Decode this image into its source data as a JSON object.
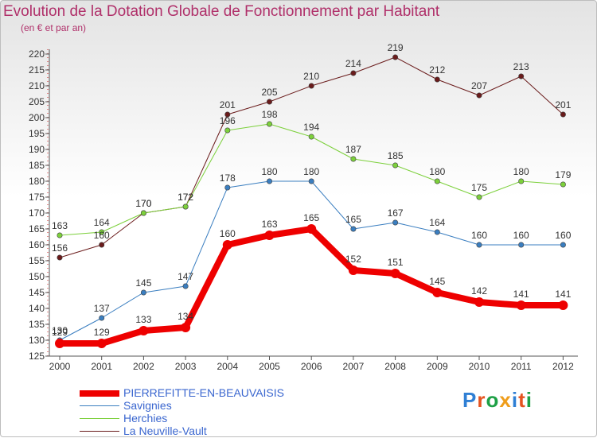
{
  "title": "Evolution de la Dotation Globale de Fonctionnement par Habitant",
  "subtitle": "(en € et par an)",
  "logo": {
    "text": "Proxiti",
    "letter_colors": [
      "#2f7fd4",
      "#e5531f",
      "#1ea046",
      "#ef9d1b",
      "#2f7fd4",
      "#e5531f",
      "#1ea046"
    ]
  },
  "chart_data": {
    "type": "line",
    "title": "Evolution de la Dotation Globale de Fonctionnement par Habitant",
    "subtitle": "(en € et par an)",
    "xlabel": "",
    "ylabel": "",
    "x": [
      "2000",
      "2001",
      "2002",
      "2003",
      "2004",
      "2005",
      "2006",
      "2007",
      "2008",
      "2009",
      "2010",
      "2011",
      "2012"
    ],
    "ylim": [
      125,
      220
    ],
    "yticks": [
      125,
      130,
      135,
      140,
      145,
      150,
      155,
      160,
      165,
      170,
      175,
      180,
      185,
      190,
      195,
      200,
      205,
      210,
      215,
      220
    ],
    "grid": false,
    "legend_position": "bottom-left",
    "series": [
      {
        "name": "PIERREFITTE-EN-BEAUVAISIS",
        "color": "#ee0000",
        "values": [
          129,
          129,
          133,
          134,
          160,
          163,
          165,
          152,
          151,
          145,
          142,
          141,
          141
        ]
      },
      {
        "name": "Savignies",
        "color": "#3a7ec0",
        "values": [
          130,
          137,
          145,
          147,
          178,
          180,
          180,
          165,
          167,
          164,
          160,
          160,
          160
        ]
      },
      {
        "name": "Herchies",
        "color": "#7cd03b",
        "values": [
          163,
          164,
          170,
          172,
          196,
          198,
          194,
          187,
          185,
          180,
          175,
          180,
          179
        ]
      },
      {
        "name": "La Neuville-Vault",
        "color": "#6a1b1b",
        "values": [
          156,
          160,
          170,
          172,
          201,
          205,
          210,
          214,
          219,
          212,
          207,
          213,
          201
        ]
      }
    ]
  }
}
